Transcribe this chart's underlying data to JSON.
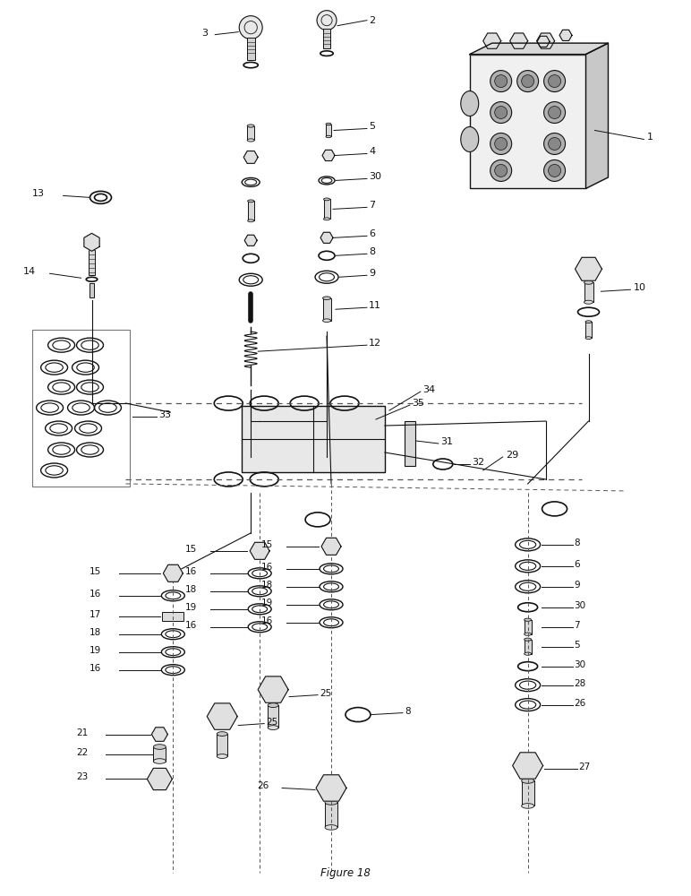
{
  "figure_caption": "Figure 18",
  "bg_color": "#ffffff",
  "fig_width": 7.72,
  "fig_height": 10.0,
  "dpi": 100,
  "label_fontsize": 8,
  "caption_fontsize": 8.5,
  "line_color": "#111111",
  "label_color": "#111111"
}
